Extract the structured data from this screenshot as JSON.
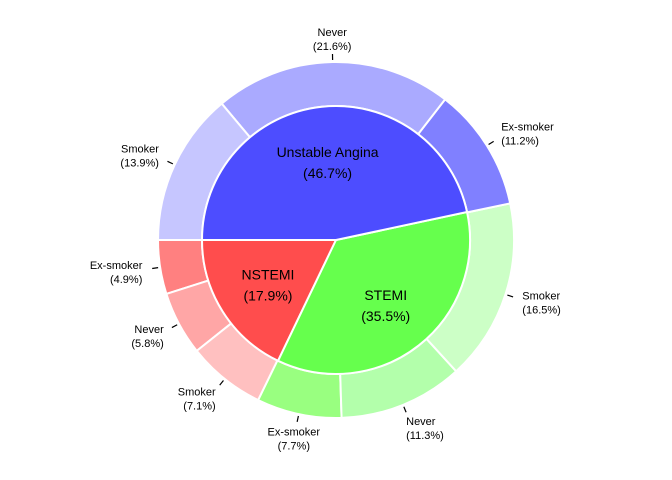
{
  "chart_data": {
    "type": "pie",
    "variant": "nested-donut",
    "inner": [
      {
        "name": "NSTEMI",
        "pct_label": "(17.9%)",
        "value": 17.9,
        "color": "#ff4d4d"
      },
      {
        "name": "STEMI",
        "pct_label": "(35.5%)",
        "value": 35.5,
        "color": "#66ff4d"
      },
      {
        "name": "Unstable Angina",
        "pct_label": "(46.7%)",
        "value": 46.7,
        "color": "#4d4dff"
      }
    ],
    "outer": [
      {
        "group": "NSTEMI",
        "name": "Ex-smoker",
        "pct_label": "(4.9%)",
        "value": 4.9,
        "color": "#ff8080"
      },
      {
        "group": "NSTEMI",
        "name": "Never",
        "pct_label": "(5.8%)",
        "value": 5.8,
        "color": "#ffa6a6"
      },
      {
        "group": "NSTEMI",
        "name": "Smoker",
        "pct_label": "(7.1%)",
        "value": 7.1,
        "color": "#ffc0c0"
      },
      {
        "group": "STEMI",
        "name": "Ex-smoker",
        "pct_label": "(7.7%)",
        "value": 7.7,
        "color": "#99ff80"
      },
      {
        "group": "STEMI",
        "name": "Never",
        "pct_label": "(11.3%)",
        "value": 11.3,
        "color": "#b3ffab"
      },
      {
        "group": "STEMI",
        "name": "Smoker",
        "pct_label": "(16.5%)",
        "value": 16.5,
        "color": "#ccffc6"
      },
      {
        "group": "Unstable Angina",
        "name": "Ex-smoker",
        "pct_label": "(11.2%)",
        "value": 11.2,
        "color": "#8080ff"
      },
      {
        "group": "Unstable Angina",
        "name": "Never",
        "pct_label": "(21.6%)",
        "value": 21.6,
        "color": "#aaaaff"
      },
      {
        "group": "Unstable Angina",
        "name": "Smoker",
        "pct_label": "(13.9%)",
        "value": 13.9,
        "color": "#c6c6ff"
      }
    ],
    "direction": "counterclockwise",
    "start": "left (9 o'clock)",
    "legend": "none"
  }
}
